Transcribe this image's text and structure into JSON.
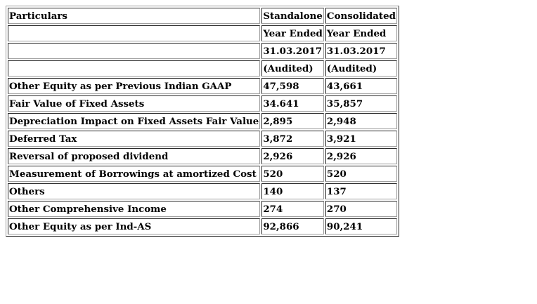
{
  "table": {
    "header_rows": [
      [
        "Particulars",
        "Standalone",
        "Consolidated"
      ],
      [
        "",
        "Year Ended",
        "Year Ended"
      ],
      [
        "",
        "31.03.2017",
        "31.03.2017"
      ],
      [
        "",
        "(Audited)",
        "(Audited)"
      ]
    ],
    "rows": [
      [
        "Other Equity as per Previous Indian GAAP",
        "47,598",
        "43,661"
      ],
      [
        "Fair Value of Fixed Assets",
        "34.641",
        "35,857"
      ],
      [
        "Depreciation Impact on Fixed Assets Fair Value",
        "2,895",
        "2,948"
      ],
      [
        "Deferred Tax",
        "3,872",
        "3,921"
      ],
      [
        "Reversal of proposed dividend",
        "2,926",
        "2,926"
      ],
      [
        "Measurement of Borrowings at amortized Cost",
        "520",
        "520"
      ],
      [
        "Others",
        "140",
        "137"
      ],
      [
        "Other Comprehensive Income",
        "274",
        "270"
      ],
      [
        "Other Equity as per Ind-AS",
        "92,866",
        "90,241"
      ]
    ]
  }
}
